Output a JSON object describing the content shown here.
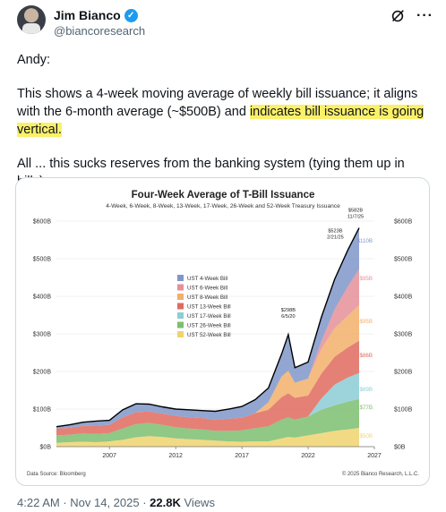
{
  "author": {
    "name": "Jim Bianco",
    "handle": "@biancoresearch"
  },
  "icons": {
    "verified": "verified-badge-icon",
    "grok": "grok-icon",
    "more": "more-icon"
  },
  "tweet": {
    "greeting": "Andy:",
    "p2_pre": "This shows a 4-week moving average of weekly bill issuance; it aligns with the 6-month average (~$500B) and ",
    "p2_highlight": "indicates bill issuance is going vertical.",
    "p3": "All ... this sucks reserves from the banking system (tying them up in bills)."
  },
  "chart": {
    "title": "Four-Week Average of T-Bill Issuance",
    "subtitle": "4-Week, 6-Week, 8-Week, 13-Week, 17-Week, 26-Week and 52-Week Treasury Issuance",
    "source": "Data Source: Bloomberg",
    "copyright": "© 2025 Bianco Research, L.L.C.",
    "y_ticks_left": [
      "$600B",
      "$500B",
      "$400B",
      "$300B",
      "$200B",
      "$100B",
      "$0B"
    ],
    "y_ticks_right": [
      "$600B",
      "$500B",
      "$400B",
      "$300B",
      "$200B",
      "$100B",
      "$0B"
    ],
    "x_ticks": [
      "2007",
      "2012",
      "2017",
      "2022",
      "2027"
    ],
    "annotations": [
      {
        "value": "$582B",
        "date": "11/7/25"
      },
      {
        "value": "$523B",
        "date": "2/21/25"
      },
      {
        "value": "$298B",
        "date": "6/5/20"
      }
    ],
    "right_labels": [
      {
        "text": "$110B",
        "color": "#7f96c9"
      },
      {
        "text": "$95B",
        "color": "#e58f97"
      },
      {
        "text": "$95B",
        "color": "#f2b06a"
      },
      {
        "text": "$86B",
        "color": "#e06a5f"
      },
      {
        "text": "$69B",
        "color": "#8ccdd6"
      },
      {
        "text": "$77B",
        "color": "#7dbe70"
      },
      {
        "text": "$50B",
        "color": "#f0d36e"
      }
    ]
  },
  "chart_data": {
    "type": "area",
    "title": "Four-Week Average of T-Bill Issuance",
    "subtitle": "4-Week, 6-Week, 8-Week, 13-Week, 17-Week, 26-Week and 52-Week Treasury Issuance",
    "ylim": [
      0,
      600
    ],
    "xlim": [
      2003,
      2027
    ],
    "stacked": true,
    "legend_position": "center-left",
    "x": [
      2003,
      2004,
      2005,
      2006,
      2007,
      2008,
      2009,
      2010,
      2011,
      2012,
      2013,
      2014,
      2015,
      2016,
      2017,
      2018,
      2019,
      2020,
      2020.5,
      2021,
      2022,
      2023,
      2024,
      2025,
      2025.85
    ],
    "series": [
      {
        "name": "UST 52-Week Bill",
        "color": "#f0d36e",
        "values": [
          10,
          12,
          13,
          12,
          14,
          18,
          25,
          28,
          26,
          22,
          20,
          18,
          16,
          14,
          13,
          14,
          14,
          22,
          26,
          24,
          30,
          36,
          42,
          46,
          50
        ]
      },
      {
        "name": "UST 26-Week Bill",
        "color": "#7dbe70",
        "values": [
          20,
          20,
          22,
          22,
          22,
          30,
          35,
          35,
          32,
          30,
          28,
          28,
          26,
          28,
          30,
          35,
          40,
          50,
          52,
          48,
          50,
          62,
          68,
          74,
          77
        ]
      },
      {
        "name": "UST 17-Week Bill",
        "color": "#8ccdd6",
        "values": [
          0,
          0,
          0,
          0,
          0,
          0,
          0,
          0,
          0,
          0,
          0,
          0,
          0,
          0,
          0,
          0,
          0,
          0,
          0,
          0,
          0,
          30,
          55,
          64,
          69
        ]
      },
      {
        "name": "UST 13-Week Bill",
        "color": "#e06a5f",
        "values": [
          18,
          18,
          20,
          22,
          22,
          30,
          32,
          30,
          30,
          30,
          30,
          30,
          30,
          32,
          34,
          40,
          44,
          60,
          64,
          58,
          56,
          66,
          74,
          80,
          86
        ]
      },
      {
        "name": "UST 8-Week Bill",
        "color": "#f2b06a",
        "values": [
          0,
          0,
          0,
          0,
          0,
          0,
          0,
          0,
          0,
          0,
          0,
          0,
          0,
          0,
          0,
          0,
          20,
          55,
          60,
          40,
          45,
          66,
          76,
          84,
          95
        ]
      },
      {
        "name": "UST 6-Week Bill",
        "color": "#e58f97",
        "values": [
          0,
          0,
          0,
          0,
          0,
          0,
          0,
          0,
          0,
          0,
          0,
          0,
          0,
          0,
          0,
          0,
          0,
          0,
          0,
          0,
          0,
          20,
          50,
          78,
          95
        ]
      },
      {
        "name": "UST 4-Week Bill",
        "color": "#7f96c9",
        "values": [
          5,
          8,
          10,
          12,
          12,
          20,
          22,
          20,
          18,
          18,
          20,
          20,
          22,
          26,
          30,
          36,
          38,
          60,
          96,
          40,
          44,
          64,
          80,
          97,
          110
        ]
      }
    ],
    "total_line": {
      "name": "Total",
      "color": "#000000",
      "values": [
        53,
        58,
        65,
        68,
        70,
        98,
        114,
        113,
        106,
        100,
        98,
        96,
        94,
        100,
        107,
        125,
        156,
        247,
        298,
        210,
        225,
        344,
        445,
        523,
        582
      ]
    }
  },
  "meta": {
    "time": "4:22 AM",
    "date": "Nov 14, 2025",
    "views": "22.8K",
    "views_label": "Views"
  }
}
